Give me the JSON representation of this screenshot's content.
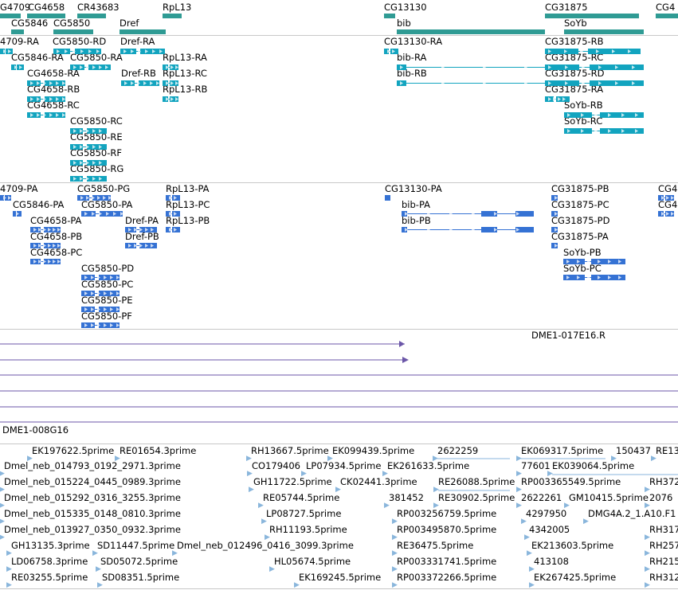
{
  "colors": {
    "gene": "#2f9b94",
    "transcript": "#12a4bf",
    "protein": "#3572d4",
    "clone": "#6b56a8",
    "est": "#8ab6dc",
    "divider": "#c8c8c8"
  },
  "tracks": {
    "genes": {
      "features": [
        {
          "label": "G4709"
        },
        {
          "label": "CG4658"
        },
        {
          "label": "CR43683"
        },
        {
          "label": "RpL13"
        },
        {
          "label": "CG13130"
        },
        {
          "label": "CG31875"
        },
        {
          "label": "CG4"
        },
        {
          "label": "CG5846"
        },
        {
          "label": "CG5850"
        },
        {
          "label": "Dref"
        },
        {
          "label": "bib"
        },
        {
          "label": "SoYb"
        }
      ]
    },
    "transcripts": {
      "features": [
        {
          "label": "4709-RA"
        },
        {
          "label": "CG5850-RD"
        },
        {
          "label": "Dref-RA"
        },
        {
          "label": "CG13130-RA"
        },
        {
          "label": "CG31875-RB"
        },
        {
          "label": "CG5846-RA"
        },
        {
          "label": "CG5850-RA"
        },
        {
          "label": "RpL13-RA"
        },
        {
          "label": "bib-RA"
        },
        {
          "label": "CG31875-RC"
        },
        {
          "label": "CG4658-RA"
        },
        {
          "label": "Dref-RB"
        },
        {
          "label": "RpL13-RC"
        },
        {
          "label": "bib-RB"
        },
        {
          "label": "CG31875-RD"
        },
        {
          "label": "CG4658-RB"
        },
        {
          "label": "RpL13-RB"
        },
        {
          "label": "CG31875-RA"
        },
        {
          "label": "CG4658-RC"
        },
        {
          "label": "SoYb-RB"
        },
        {
          "label": "CG5850-RC"
        },
        {
          "label": "SoYb-RC"
        },
        {
          "label": "CG5850-RE"
        },
        {
          "label": "CG5850-RF"
        },
        {
          "label": "CG5850-RG"
        }
      ]
    },
    "proteins": {
      "features": [
        {
          "label": "4709-PA"
        },
        {
          "label": "CG5850-PG"
        },
        {
          "label": "RpL13-PA"
        },
        {
          "label": "CG13130-PA"
        },
        {
          "label": "CG31875-PB"
        },
        {
          "label": "CG4"
        },
        {
          "label": "CG5846-PA"
        },
        {
          "label": "CG5850-PA"
        },
        {
          "label": "RpL13-PC"
        },
        {
          "label": "bib-PA"
        },
        {
          "label": "CG31875-PC"
        },
        {
          "label": "CG4"
        },
        {
          "label": "CG4658-PA"
        },
        {
          "label": "Dref-PA"
        },
        {
          "label": "RpL13-PB"
        },
        {
          "label": "bib-PB"
        },
        {
          "label": "CG31875-PD"
        },
        {
          "label": "CG4658-PB"
        },
        {
          "label": "Dref-PB"
        },
        {
          "label": "CG31875-PA"
        },
        {
          "label": "CG4658-PC"
        },
        {
          "label": "SoYb-PB"
        },
        {
          "label": "CG5850-PD"
        },
        {
          "label": "SoYb-PC"
        },
        {
          "label": "CG5850-PC"
        },
        {
          "label": "CG5850-PE"
        },
        {
          "label": "CG5850-PF"
        }
      ]
    },
    "clones": {
      "features": [
        {
          "label": "DME1-017E16.R"
        },
        {
          "label": "DME1-008G16"
        }
      ]
    },
    "ests": {
      "features": [
        {
          "label": "EK197622.5prime"
        },
        {
          "label": "RE01654.3prime"
        },
        {
          "label": "RH13667.5prime"
        },
        {
          "label": "EK099439.5prime"
        },
        {
          "label": "2622259"
        },
        {
          "label": "EK069317.5prime"
        },
        {
          "label": "150437"
        },
        {
          "label": "RE13"
        },
        {
          "label": "Dmel_neb_014793_0192_2971.3prime"
        },
        {
          "label": "CO179406"
        },
        {
          "label": "LP07934.5prime"
        },
        {
          "label": "EK261633.5prime"
        },
        {
          "label": "77601"
        },
        {
          "label": "EK039064.5prime"
        },
        {
          "label": "Dmel_neb_015224_0445_0989.3prime"
        },
        {
          "label": "GH11722.5prime"
        },
        {
          "label": "CK02441.3prime"
        },
        {
          "label": "RE26088.5prime"
        },
        {
          "label": "RP003365549.5prime"
        },
        {
          "label": "RH372"
        },
        {
          "label": "Dmel_neb_015292_0316_3255.3prime"
        },
        {
          "label": "RE05744.5prime"
        },
        {
          "label": "381452"
        },
        {
          "label": "RE30902.5prime"
        },
        {
          "label": "2622261"
        },
        {
          "label": "GM10415.5prime"
        },
        {
          "label": "2076"
        },
        {
          "label": "Dmel_neb_015335_0148_0810.3prime"
        },
        {
          "label": "LP08727.5prime"
        },
        {
          "label": "RP003256759.5prime"
        },
        {
          "label": "4297950"
        },
        {
          "label": "DMG4A.2_1.A10.F1"
        },
        {
          "label": "Dmel_neb_013927_0350_0932.3prime"
        },
        {
          "label": "RH11193.5prime"
        },
        {
          "label": "RP003495870.5prime"
        },
        {
          "label": "4342005"
        },
        {
          "label": "RH317"
        },
        {
          "label": "GH13135.3prime"
        },
        {
          "label": "SD11447.5prime"
        },
        {
          "label": "Dmel_neb_012496_0416_3099.3prime"
        },
        {
          "label": "RE36475.5prime"
        },
        {
          "label": "EK213603.5prime"
        },
        {
          "label": "RH257"
        },
        {
          "label": "LD06758.3prime"
        },
        {
          "label": "SD05072.5prime"
        },
        {
          "label": "HL05674.5prime"
        },
        {
          "label": "RP003331741.5prime"
        },
        {
          "label": "413108"
        },
        {
          "label": "RH215"
        },
        {
          "label": "RE03255.5prime"
        },
        {
          "label": "SD08351.5prime"
        },
        {
          "label": "EK169245.5prime"
        },
        {
          "label": "RP003372266.5prime"
        },
        {
          "label": "EK267425.5prime"
        },
        {
          "label": "RH312"
        }
      ]
    }
  }
}
